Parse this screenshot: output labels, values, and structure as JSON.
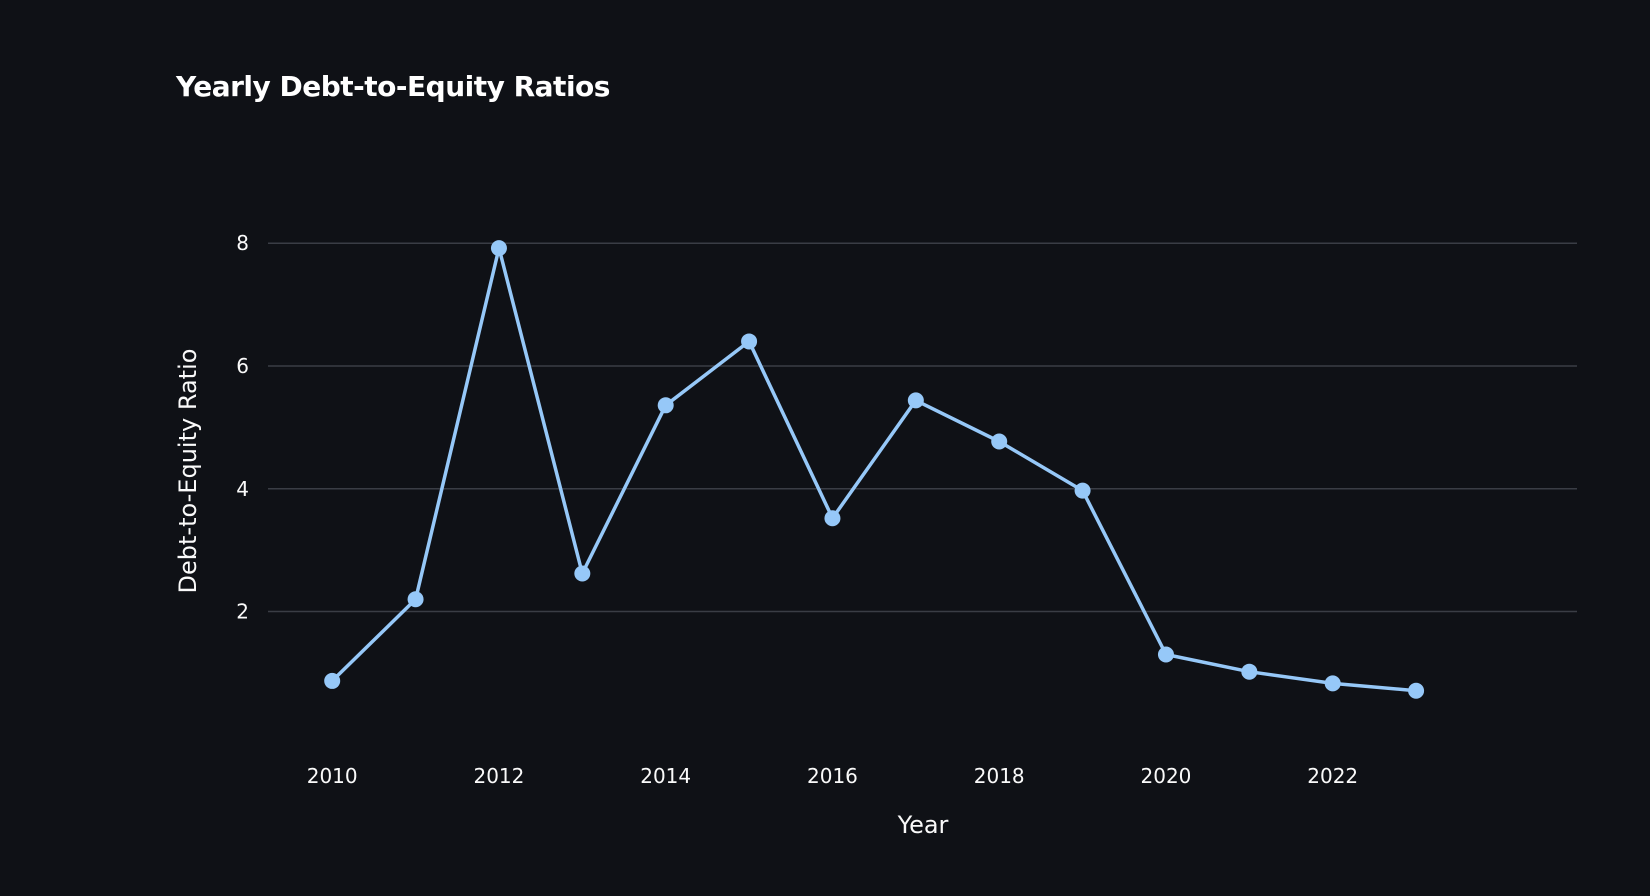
{
  "chart_data": {
    "type": "line",
    "title": "Yearly Debt-to-Equity Ratios",
    "xlabel": "Year",
    "ylabel": "Debt-to-Equity Ratio",
    "x": [
      2010,
      2011,
      2012,
      2013,
      2014,
      2015,
      2016,
      2017,
      2018,
      2019,
      2020,
      2021,
      2022,
      2023
    ],
    "y": [
      0.87,
      2.2,
      7.92,
      2.62,
      5.36,
      6.4,
      3.52,
      5.44,
      4.77,
      3.97,
      1.3,
      1.02,
      0.83,
      0.71
    ],
    "xticks": [
      2010,
      2012,
      2014,
      2016,
      2018,
      2020,
      2022
    ],
    "yticks": [
      2,
      4,
      6,
      8
    ],
    "xlim": [
      2009.23,
      2024.93
    ],
    "ylim": [
      -0.06,
      9.03
    ],
    "grid": "horizontal",
    "line_color": "#96c8f8",
    "background": "#0f1116",
    "text_color": "#fafafa",
    "grid_color": "#3a3d45"
  }
}
